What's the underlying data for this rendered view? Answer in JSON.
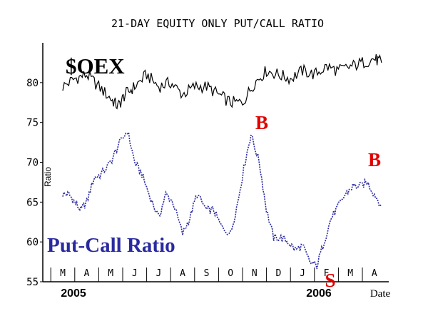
{
  "chart_data": {
    "type": "line",
    "title": "21-DAY EQUITY ONLY PUT/CALL RATIO",
    "ylabel": "Ratio",
    "xlabel": "Date",
    "ylim": [
      55,
      85
    ],
    "yticks": [
      55,
      60,
      65,
      70,
      75,
      80
    ],
    "months": [
      "M",
      "A",
      "M",
      "J",
      "J",
      "A",
      "S",
      "O",
      "N",
      "D",
      "J",
      "F",
      "M",
      "A"
    ],
    "years": [
      "2005",
      "2006"
    ],
    "series": [
      {
        "name": "$OEX",
        "color": "#000000",
        "x": [
          0,
          0.5,
          1,
          1.5,
          2,
          2.3,
          2.6,
          3,
          3.5,
          4,
          4.5,
          5,
          5.5,
          6,
          6.5,
          7,
          7.5,
          8,
          8.5,
          9,
          9.5,
          10,
          10.5,
          11,
          11.5,
          12,
          12.5,
          13,
          13.3
        ],
        "values": [
          79.5,
          80.5,
          81,
          79.5,
          78,
          77,
          78.5,
          79.5,
          81,
          79.5,
          80,
          78.5,
          79.5,
          79.5,
          78.5,
          77.5,
          77.5,
          80,
          81.5,
          81,
          80.5,
          81.5,
          81,
          82,
          81.5,
          82,
          82.5,
          83,
          82.5
        ]
      },
      {
        "name": "Put-Call Ratio",
        "color": "#2a2aa0",
        "x": [
          0,
          0.25,
          0.5,
          0.75,
          1,
          1.3,
          1.6,
          2,
          2.3,
          2.7,
          3,
          3.3,
          3.6,
          4,
          4.3,
          4.6,
          5,
          5.3,
          5.6,
          6,
          6.3,
          6.6,
          7,
          7.3,
          7.6,
          7.85,
          8.2,
          8.5,
          8.8,
          9.1,
          9.4,
          9.7,
          10,
          10.3,
          10.6,
          10.9,
          11.2,
          11.5,
          11.8,
          12.1,
          12.4,
          12.7,
          13,
          13.3
        ],
        "values": [
          66,
          66,
          65,
          64,
          65,
          68,
          68.5,
          70,
          72,
          74,
          70,
          68.5,
          66,
          63,
          66,
          65,
          61,
          63,
          66,
          64,
          64,
          62,
          61,
          65,
          70,
          73.5,
          70,
          64,
          60.5,
          60.5,
          60,
          59,
          59.5,
          57.5,
          57,
          60,
          63,
          64.5,
          66,
          67,
          67,
          67.5,
          66,
          64.5
        ]
      }
    ],
    "annotations": [
      {
        "text": "$OEX",
        "color": "#000000"
      },
      {
        "text": "Put-Call Ratio",
        "color": "#2a2aa0"
      },
      {
        "text": "B",
        "color": "#e00000"
      },
      {
        "text": "B",
        "color": "#e00000"
      },
      {
        "text": "S",
        "color": "#e00000"
      }
    ]
  }
}
